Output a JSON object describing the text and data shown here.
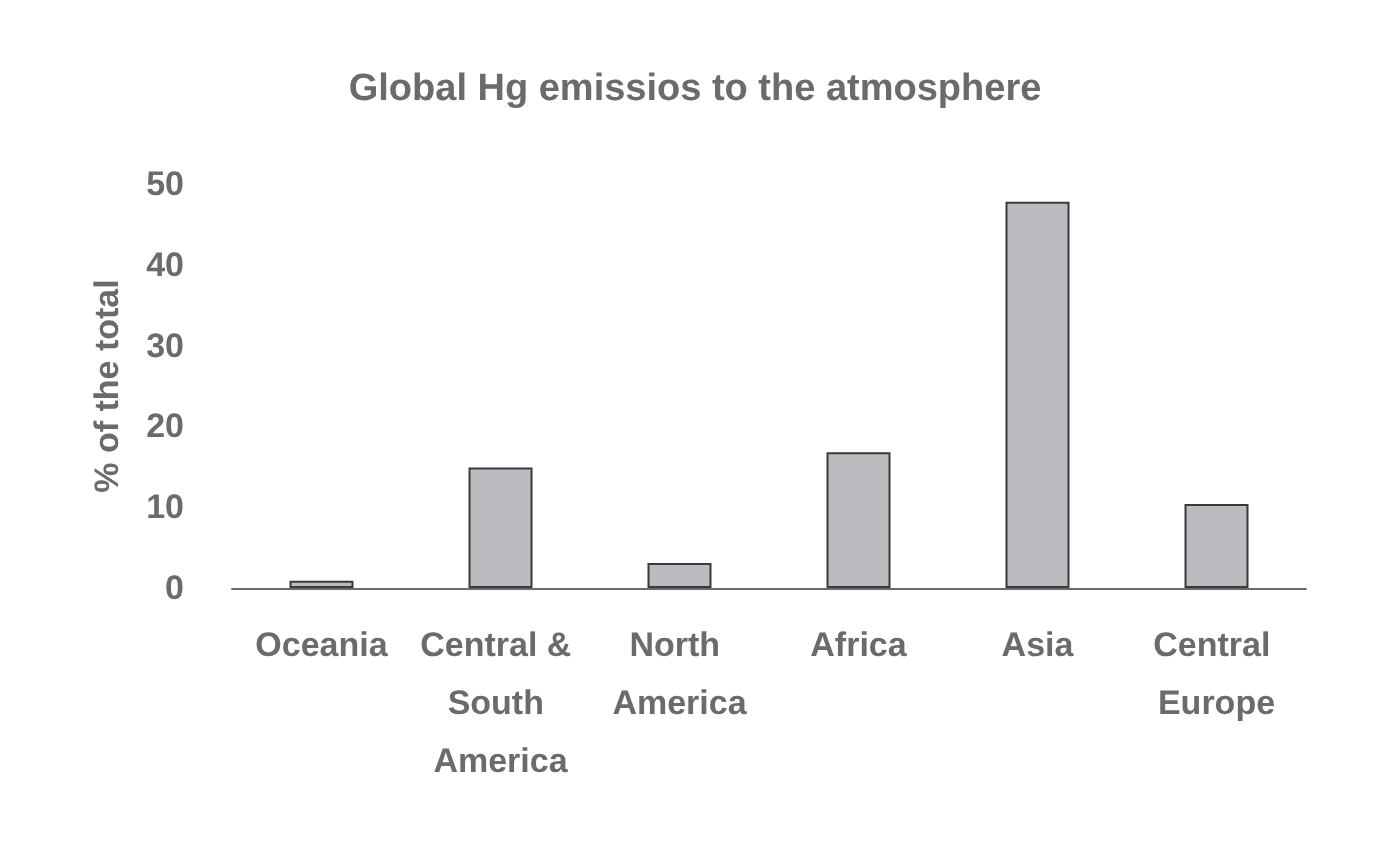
{
  "chart_data": {
    "type": "bar",
    "title": "Global Hg emissios to the atmosphere",
    "ylabel": "% of the total",
    "categories": [
      "Oceania",
      "Central & South America",
      "North America",
      "Africa",
      "Asia",
      "Central Europe"
    ],
    "values": [
      0.9,
      14.9,
      3.1,
      16.8,
      47.8,
      10.4
    ],
    "color": "#bcbcc0",
    "ylim": [
      0,
      50
    ],
    "yticks": [
      0,
      10,
      20,
      30,
      40,
      50
    ],
    "grid": false
  }
}
